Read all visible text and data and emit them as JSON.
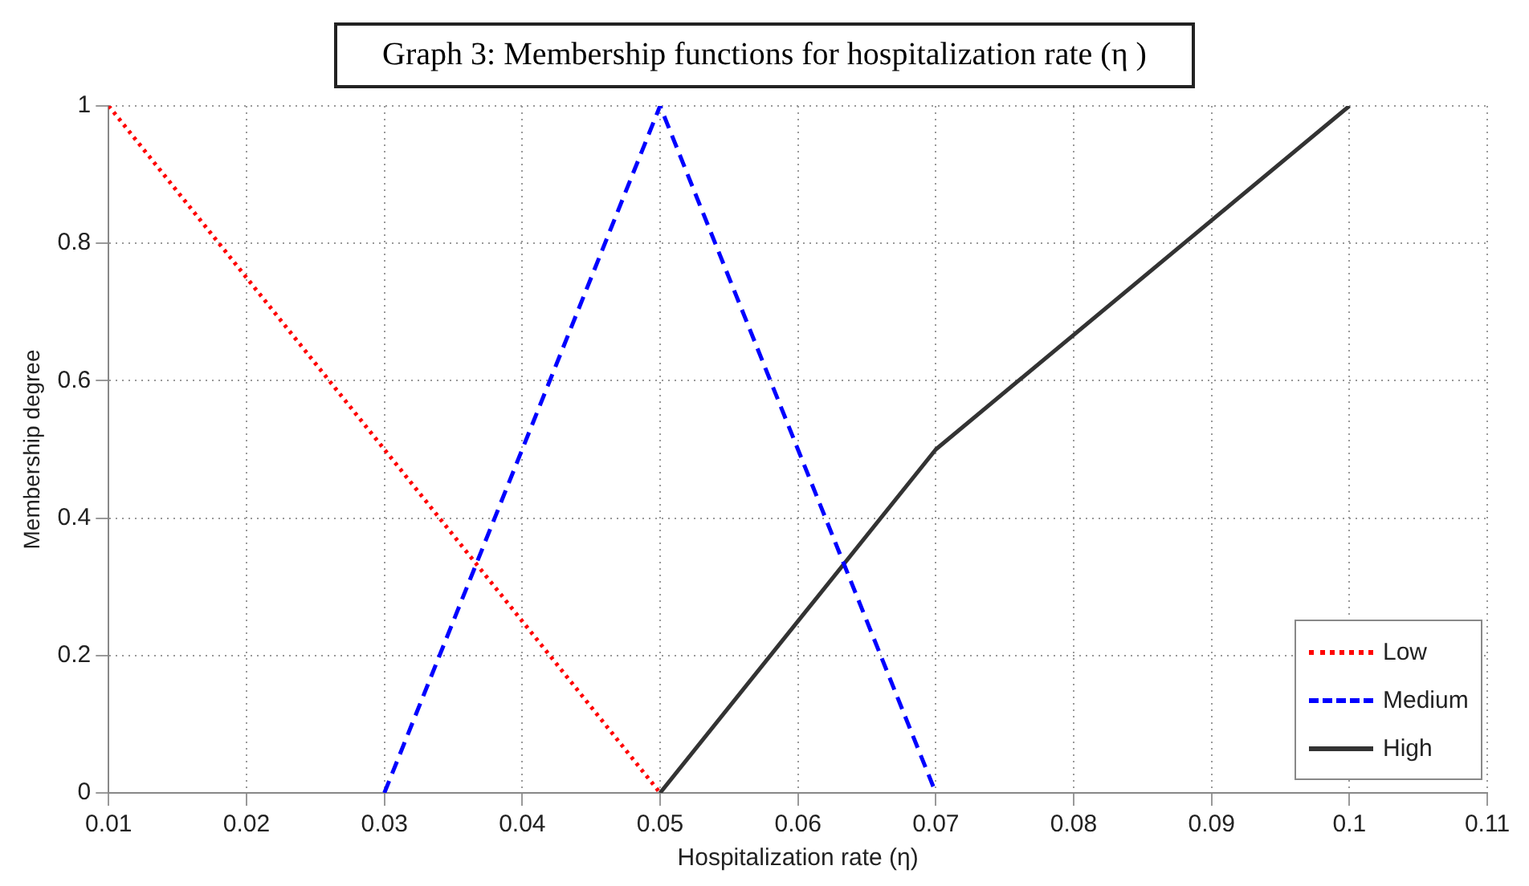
{
  "chart_data": {
    "type": "line",
    "title": "Graph 3: Membership functions for hospitalization rate (η )",
    "xlabel": "Hospitalization rate (η)",
    "ylabel": "Membership degree",
    "xlim": [
      0.01,
      0.11
    ],
    "xticks": [
      0.01,
      0.02,
      0.03,
      0.04,
      0.05,
      0.06,
      0.07,
      0.08,
      0.09,
      0.1,
      0.11
    ],
    "ylim": [
      0,
      1
    ],
    "yticks": [
      0,
      0.2,
      0.4,
      0.6,
      0.8,
      1
    ],
    "grid": true,
    "legend": "bottom right",
    "series": [
      {
        "name": "Low",
        "color": "#ff0000",
        "line_style": "dotted",
        "x": [
          0.01,
          0.05
        ],
        "values": [
          1,
          0
        ]
      },
      {
        "name": "Medium",
        "color": "#0000ff",
        "line_style": "dashed",
        "x": [
          0.03,
          0.05,
          0.07
        ],
        "values": [
          0,
          1,
          0
        ]
      },
      {
        "name": "High",
        "color": "#333333",
        "line_style": "solid",
        "x": [
          0.05,
          0.07,
          0.1
        ],
        "values": [
          0,
          0.5,
          1
        ]
      }
    ]
  }
}
